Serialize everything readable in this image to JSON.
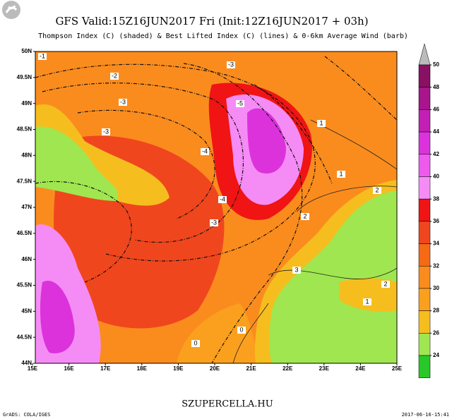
{
  "header": {
    "title": "GFS Valid:15Z16JUN2017 Fri (Init:12Z16JUN2017 + 03h)",
    "subtitle": "Thompson Index (C) (shaded) & Best Lifted Index (C) (lines) & 0-6km Average Wind (barb)"
  },
  "map": {
    "lat_labels": [
      "50N",
      "49.5N",
      "49N",
      "48.5N",
      "48N",
      "47.5N",
      "47N",
      "46.5N",
      "46N",
      "45.5N",
      "45N",
      "44.5N",
      "44N"
    ],
    "lon_labels": [
      "15E",
      "16E",
      "17E",
      "18E",
      "19E",
      "20E",
      "21E",
      "22E",
      "23E",
      "24E",
      "25E"
    ],
    "contour_labels": [
      -1,
      -2,
      -3,
      -3,
      -3,
      -5,
      -4,
      -4,
      -3,
      1,
      1,
      2,
      2,
      2,
      3,
      0,
      0,
      1
    ]
  },
  "colorbar": {
    "levels": [
      50,
      48,
      46,
      44,
      42,
      40,
      38,
      36,
      34,
      32,
      30,
      28,
      26,
      24
    ],
    "colors": [
      "#8a1064",
      "#a8158c",
      "#c41fb4",
      "#dc32dc",
      "#ee5aee",
      "#f58cf5",
      "#f01414",
      "#f0461e",
      "#f56a14",
      "#fa8c1e",
      "#faa01e",
      "#f5be1e",
      "#a0e650",
      "#28c828"
    ]
  },
  "footer": {
    "site": "SZUPERCELLA.HU",
    "left": "GrADS: COLA/IGES",
    "right": "2017-06-16-15:41"
  }
}
